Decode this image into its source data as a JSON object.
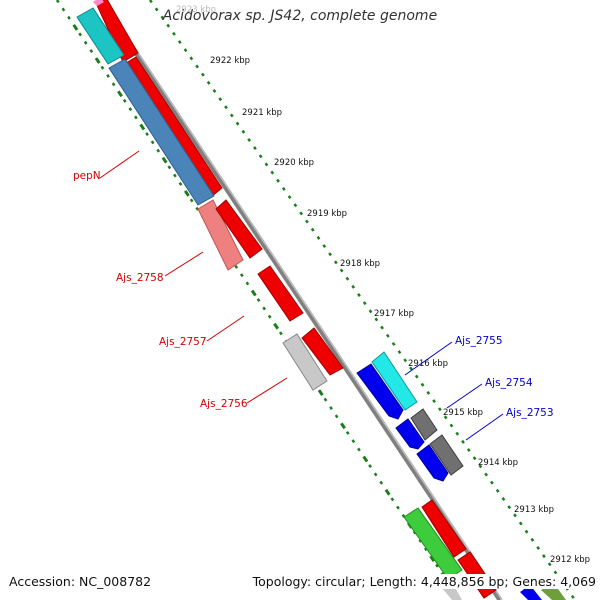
{
  "title": "Acidovorax sp. JS42, complete genome",
  "footer": {
    "accession": "Accession: NC_008782",
    "summary": "Topology: circular; Length: 4,448,856 bp; Genes: 4,069"
  },
  "colors": {
    "backbone": "#808080",
    "tick": "#1a7f1a",
    "label_red": "#d40000",
    "label_blue": "#0000cc",
    "ruler_text": "#111111"
  },
  "ruler_labels": [
    "2923 kbp",
    "2922 kbp",
    "2921 kbp",
    "2920 kbp",
    "2919 kbp",
    "2918 kbp",
    "2917 kbp",
    "2916 kbp",
    "2915 kbp",
    "2914 kbp",
    "2913 kbp",
    "2912 kbp"
  ],
  "gene_labels": [
    {
      "name": "pepN",
      "color": "#d40000"
    },
    {
      "name": "Ajs_2758",
      "color": "#d40000"
    },
    {
      "name": "Ajs_2757",
      "color": "#d40000"
    },
    {
      "name": "Ajs_2756",
      "color": "#d40000"
    },
    {
      "name": "Ajs_2755",
      "color": "#0000cc"
    },
    {
      "name": "Ajs_2754",
      "color": "#0000cc"
    },
    {
      "name": "Ajs_2753",
      "color": "#0000cc"
    }
  ]
}
